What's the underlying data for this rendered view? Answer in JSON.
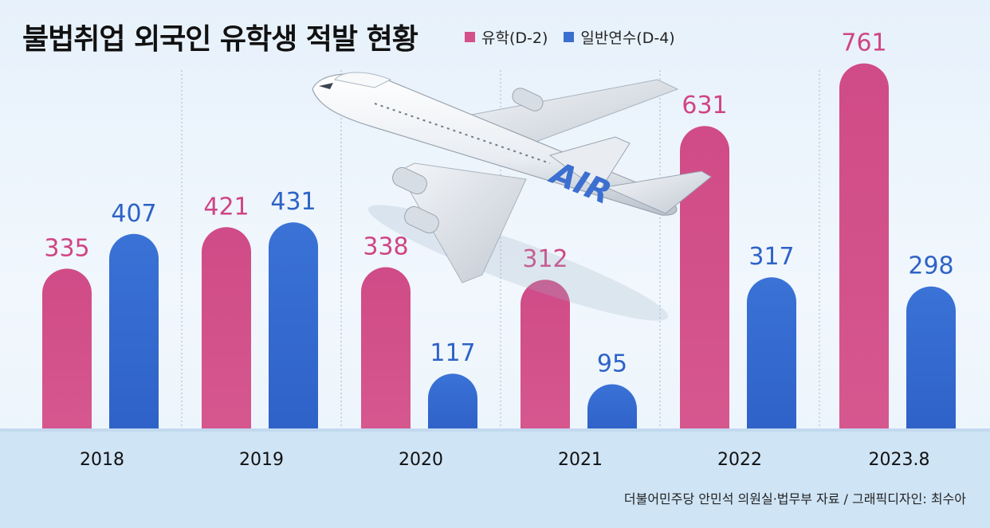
{
  "title": "불법취업 외국인 유학생 적발 현황",
  "legend": [
    {
      "label": "유학(D-2)",
      "color": "#d4508a"
    },
    {
      "label": "일반연수(D-4)",
      "color": "#3a6fd0"
    }
  ],
  "source": "더불어민주당 안민석 의원실·법무부 자료 / 그래픽디자인: 최수아",
  "colors": {
    "pink": "#d4508a",
    "blue": "#3a6fd0",
    "pink_label": "#cf4585",
    "blue_label": "#2e63c6",
    "band": "#cfe4f5"
  },
  "chart_data": {
    "type": "bar",
    "title": "불법취업 외국인 유학생 적발 현황",
    "categories": [
      "2018",
      "2019",
      "2020",
      "2021",
      "2022",
      "2023.8"
    ],
    "series": [
      {
        "name": "유학(D-2)",
        "values": [
          335,
          421,
          338,
          312,
          631,
          761
        ]
      },
      {
        "name": "일반연수(D-4)",
        "values": [
          407,
          431,
          117,
          95,
          317,
          298
        ]
      }
    ],
    "data_labels": true,
    "legend_position": "top",
    "grid": false
  },
  "decoration": {
    "illustration": "airplane-icon",
    "tail_text": "AIR"
  }
}
